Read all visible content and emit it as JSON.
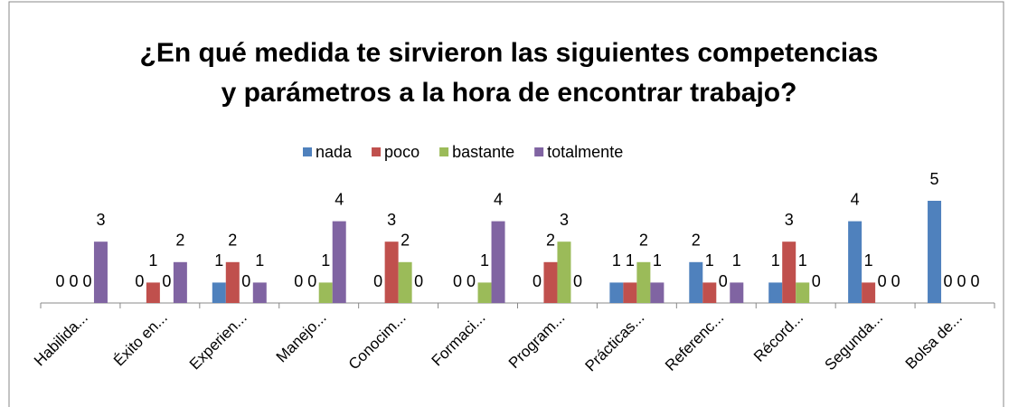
{
  "chart_data": {
    "type": "bar",
    "title": [
      "¿En qué medida te sirvieron las siguientes competencias",
      "y parámetros a la hora de encontrar trabajo?"
    ],
    "categories": [
      "Habilida...",
      "Éxito en...",
      "Experien...",
      "Manejo...",
      "Conocim...",
      "Formaci...",
      "Program...",
      "Prácticas...",
      "Referenc...",
      "Récord...",
      "Segunda...",
      "Bolsa de..."
    ],
    "series": [
      {
        "name": "nada",
        "color": "#4F81BD",
        "values": [
          0,
          0,
          1,
          0,
          0,
          0,
          0,
          1,
          2,
          1,
          4,
          5
        ]
      },
      {
        "name": "poco",
        "color": "#C0504D",
        "values": [
          0,
          1,
          2,
          0,
          3,
          0,
          2,
          1,
          1,
          3,
          1,
          0
        ]
      },
      {
        "name": "bastante",
        "color": "#9BBB59",
        "values": [
          0,
          0,
          0,
          1,
          2,
          1,
          3,
          2,
          0,
          1,
          0,
          0
        ]
      },
      {
        "name": "totalmente",
        "color": "#8064A2",
        "values": [
          3,
          2,
          1,
          4,
          0,
          4,
          0,
          1,
          1,
          0,
          0,
          0
        ]
      }
    ],
    "legend": "top"
  }
}
